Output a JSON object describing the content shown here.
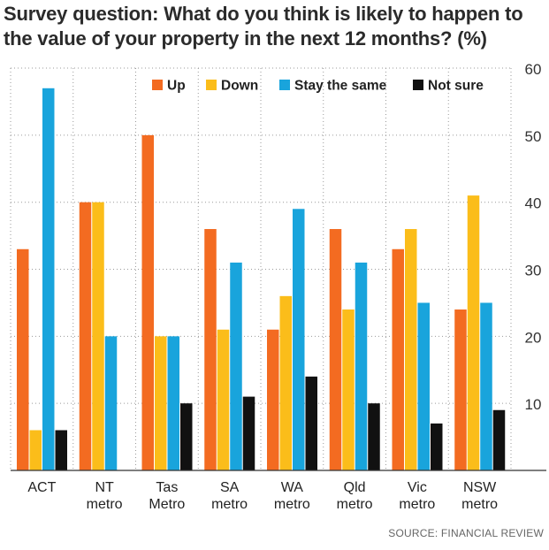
{
  "title_line1": "Survey question: What do you think is likely to happen to",
  "title_line2": "the value of your property in the next 12 months? (%)",
  "source": "SOURCE: FINANCIAL REVIEW",
  "colors": {
    "Up": "#f36b21",
    "Down": "#fbbd1a",
    "Stay the same": "#19a4dc",
    "Not sure": "#111111"
  },
  "chart_data": {
    "type": "bar",
    "categories": [
      [
        "ACT"
      ],
      [
        "NT",
        "metro"
      ],
      [
        "Tas",
        "Metro"
      ],
      [
        "SA",
        "metro"
      ],
      [
        "WA",
        "metro"
      ],
      [
        "Qld",
        "metro"
      ],
      [
        "Vic",
        "metro"
      ],
      [
        "NSW",
        "metro"
      ]
    ],
    "series": [
      {
        "name": "Up",
        "values": [
          33,
          40,
          50,
          36,
          21,
          36,
          33,
          24
        ]
      },
      {
        "name": "Down",
        "values": [
          6,
          40,
          20,
          21,
          26,
          24,
          36,
          41
        ]
      },
      {
        "name": "Stay the same",
        "values": [
          57,
          20,
          20,
          31,
          39,
          31,
          25,
          25
        ]
      },
      {
        "name": "Not sure",
        "values": [
          6,
          0,
          10,
          11,
          14,
          10,
          7,
          9
        ]
      }
    ],
    "yticks": [
      10,
      20,
      30,
      40,
      50,
      60
    ],
    "ylim": [
      0,
      60
    ],
    "grid": true,
    "legend_position": "top",
    "ylabel": "",
    "xlabel": ""
  }
}
